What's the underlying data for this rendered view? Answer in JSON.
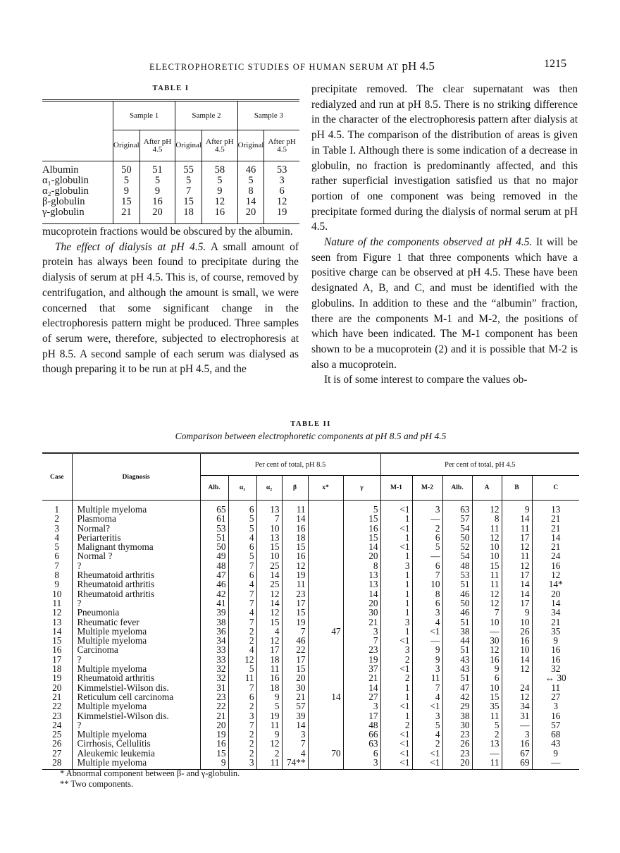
{
  "header": {
    "running_title": "ELECTROPHORETIC STUDIES OF HUMAN SERUM AT",
    "running_title_ph": "pH 4.5",
    "page_number": "1215"
  },
  "table1": {
    "title": "TABLE I",
    "groups": [
      "Sample 1",
      "Sample 2",
      "Sample 3"
    ],
    "subheads": [
      "Original",
      "After pH 4.5"
    ],
    "rows": [
      {
        "label": "Albumin",
        "values": [
          "50",
          "51",
          "55",
          "58",
          "46",
          "53"
        ]
      },
      {
        "label": "α₁-globulin",
        "values": [
          "5",
          "5",
          "5",
          "5",
          "5",
          "3"
        ]
      },
      {
        "label": "α₂-globulin",
        "values": [
          "9",
          "9",
          "7",
          "9",
          "8",
          "6"
        ]
      },
      {
        "label": "β-globulin",
        "values": [
          "15",
          "16",
          "15",
          "12",
          "14",
          "12"
        ]
      },
      {
        "label": "γ-globulin",
        "values": [
          "21",
          "20",
          "18",
          "16",
          "20",
          "19"
        ]
      }
    ]
  },
  "left_text": {
    "p1": "mucoprotein fractions would be obscured by the albumin.",
    "p2_heading": "The effect of dialysis at pH 4.5.",
    "p2": " A small amount of protein has always been found to precipitate during the dialysis of serum at pH 4.5. This is, of course, removed by centrifugation, and although the amount is small, we were concerned that some significant change in the electrophoresis pattern might be produced. Three samples of serum were, therefore, subjected to electrophoresis at pH 8.5. A second sample of each serum was dialysed as though preparing it to be run at pH 4.5, and the"
  },
  "right_text": {
    "p1": "precipitate removed. The clear supernatant was then redialyzed and run at pH 8.5. There is no striking difference in the character of the electrophoresis pattern after dialysis at pH 4.5. The comparison of the distribution of areas is given in Table I. Although there is some indication of a decrease in globulin, no fraction is predominantly affected, and this rather superficial investigation satisfied us that no major portion of one component was being removed in the precipitate formed during the dialysis of normal serum at pH 4.5.",
    "p2_heading": "Nature of the components observed at pH 4.5.",
    "p2": " It will be seen from Figure 1 that three components which have a positive charge can be observed at pH 4.5. These have been designated A, B, and C, and must be identified with the globulins. In addition to these and the “albumin” fraction, there are the components M-1 and M-2, the positions of which have been indicated. The M-1 component has been shown to be a mucoprotein (2) and it is possible that M-2 is also a mucoprotein.",
    "p3": "It is of some interest to compare the values ob-"
  },
  "table2": {
    "title": "TABLE II",
    "subtitle": "Comparison between electrophoretic components at pH 8.5 and pH 4.5",
    "case_header": "Case",
    "diagnosis_header": "Diagnosis",
    "group_ph85": "Per cent of total, pH 8.5",
    "group_ph45": "Per cent of total, pH 4.5",
    "columns_ph85": [
      "Alb.",
      "α₁",
      "α₂",
      "β",
      "x*",
      "γ"
    ],
    "columns_ph45": [
      "M-1",
      "M-2",
      "Alb.",
      "A",
      "B",
      "C"
    ],
    "rows": [
      [
        "1",
        "Multiple myeloma",
        "65",
        "6",
        "13",
        "11",
        "",
        "5",
        "<1",
        "3",
        "63",
        "12",
        "9",
        "13"
      ],
      [
        "2",
        "Plasmoma",
        "61",
        "5",
        "7",
        "14",
        "",
        "15",
        "1",
        "—",
        "57",
        "8",
        "14",
        "21"
      ],
      [
        "3",
        "Normal?",
        "53",
        "5",
        "10",
        "16",
        "",
        "16",
        "<1",
        "2",
        "54",
        "11",
        "11",
        "21"
      ],
      [
        "4",
        "Periarteritis",
        "51",
        "4",
        "13",
        "18",
        "",
        "15",
        "1",
        "6",
        "50",
        "12",
        "17",
        "14"
      ],
      [
        "5",
        "Malignant thymoma",
        "50",
        "6",
        "15",
        "15",
        "",
        "14",
        "<1",
        "5",
        "52",
        "10",
        "12",
        "21"
      ],
      [
        "6",
        "Normal ?",
        "49",
        "5",
        "10",
        "16",
        "",
        "20",
        "1",
        "—",
        "54",
        "10",
        "11",
        "24"
      ],
      [
        "7",
        "   ?",
        "48",
        "7",
        "25",
        "12",
        "",
        "8",
        "3",
        "6",
        "48",
        "15",
        "12",
        "16"
      ],
      [
        "8",
        "Rheumatoid arthritis",
        "47",
        "6",
        "14",
        "19",
        "",
        "13",
        "1",
        "7",
        "53",
        "11",
        "17",
        "12"
      ],
      [
        "9",
        "Rheumatoid arthritis",
        "46",
        "4",
        "25",
        "11",
        "",
        "13",
        "1",
        "10",
        "51",
        "11",
        "14",
        "14*"
      ],
      [
        "10",
        "Rheumatoid arthritis",
        "42",
        "7",
        "12",
        "23",
        "",
        "14",
        "1",
        "8",
        "46",
        "12",
        "14",
        "20"
      ],
      [
        "11",
        "   ?",
        "41",
        "7",
        "14",
        "17",
        "",
        "20",
        "1",
        "6",
        "50",
        "12",
        "17",
        "14"
      ],
      [
        "12",
        "Pneumonia",
        "39",
        "4",
        "12",
        "15",
        "",
        "30",
        "1",
        "3",
        "46",
        "7",
        "9",
        "34"
      ],
      [
        "13",
        "Rheumatic fever",
        "38",
        "7",
        "15",
        "19",
        "",
        "21",
        "3",
        "4",
        "51",
        "10",
        "10",
        "21"
      ],
      [
        "14",
        "Multiple myeloma",
        "36",
        "2",
        "4",
        "7",
        "47",
        "3",
        "1",
        "<1",
        "38",
        "—",
        "26",
        "35"
      ],
      [
        "15",
        "Multiple myeloma",
        "34",
        "2",
        "12",
        "46",
        "",
        "7",
        "<1",
        "—",
        "44",
        "30",
        "16",
        "9"
      ],
      [
        "16",
        "Carcinoma",
        "33",
        "4",
        "17",
        "22",
        "",
        "23",
        "3",
        "9",
        "51",
        "12",
        "10",
        "16"
      ],
      [
        "17",
        "   ?",
        "33",
        "12",
        "18",
        "17",
        "",
        "19",
        "2",
        "9",
        "43",
        "16",
        "14",
        "16"
      ],
      [
        "18",
        "Multiple myeloma",
        "32",
        "5",
        "11",
        "15",
        "",
        "37",
        "<1",
        "3",
        "43",
        "9",
        "12",
        "32"
      ],
      [
        "19",
        "Rheumatoid arthritis",
        "32",
        "11",
        "16",
        "20",
        "",
        "21",
        "2",
        "11",
        "51",
        "6",
        "",
        "↔ 30"
      ],
      [
        "20",
        "Kimmelstiel-Wilson dis.",
        "31",
        "7",
        "18",
        "30",
        "",
        "14",
        "1",
        "7",
        "47",
        "10",
        "24",
        "11"
      ],
      [
        "21",
        "Reticulum cell carcinoma",
        "23",
        "6",
        "9",
        "21",
        "14",
        "27",
        "1",
        "4",
        "42",
        "15",
        "12",
        "27"
      ],
      [
        "22",
        "Multiple myeloma",
        "22",
        "2",
        "5",
        "57",
        "",
        "3",
        "<1",
        "<1",
        "29",
        "35",
        "34",
        "3"
      ],
      [
        "23",
        "Kimmelstiel-Wilson dis.",
        "21",
        "3",
        "19",
        "39",
        "",
        "17",
        "1",
        "3",
        "38",
        "11",
        "31",
        "16"
      ],
      [
        "24",
        "   ?",
        "20",
        "7",
        "11",
        "14",
        "",
        "48",
        "2",
        "5",
        "30",
        "5",
        "—",
        "57"
      ],
      [
        "25",
        "Multiple myeloma",
        "19",
        "2",
        "9",
        "3",
        "",
        "66",
        "<1",
        "4",
        "23",
        "2",
        "3",
        "68"
      ],
      [
        "26",
        "Cirrhosis, Cellulitis",
        "16",
        "2",
        "12",
        "7",
        "",
        "63",
        "<1",
        "2",
        "26",
        "13",
        "16",
        "43"
      ],
      [
        "27",
        "Aleukemic leukemia",
        "15",
        "2",
        "2",
        "4",
        "70",
        "6",
        "<1",
        "<1",
        "23",
        "—",
        "67",
        "9"
      ],
      [
        "28",
        "Multiple myeloma",
        "9",
        "3",
        "11",
        "74**",
        "",
        "3",
        "<1",
        "<1",
        "20",
        "11",
        "69",
        "—"
      ]
    ],
    "footnotes": [
      "* Abnormal component between β- and γ-globulin.",
      "** Two components."
    ]
  }
}
